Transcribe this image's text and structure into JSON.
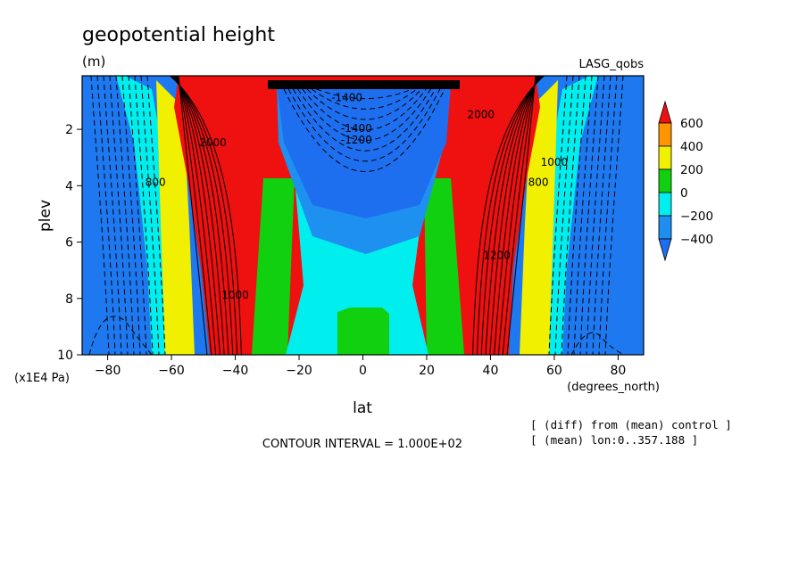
{
  "chart_data": {
    "type": "heatmap",
    "title": "geopotential height",
    "units": "(m)",
    "dataset_label": "LASG_qobs",
    "xlabel": "lat",
    "xunits": "(degrees_north)",
    "ylabel": "plev",
    "yunits": "(x1E4 Pa)",
    "x_ticks": [
      -80,
      -60,
      -40,
      -20,
      0,
      20,
      40,
      60,
      80
    ],
    "y_ticks": [
      2,
      4,
      6,
      8,
      10
    ],
    "xlim": [
      -88,
      88
    ],
    "ylim": [
      0.1,
      10
    ],
    "y_reversed": true,
    "contour_interval_text": "CONTOUR INTERVAL = 1.000E+02",
    "notes": [
      "[ (diff) from (mean) control ]",
      "[ (mean) lon:0..357.188 ]"
    ],
    "colorbar": {
      "levels": [
        600,
        400,
        200,
        0,
        -200,
        -400
      ],
      "bands": [
        {
          "range": "> 600",
          "color": "#ef1010"
        },
        {
          "range": "400 to 600",
          "color": "#ff9500"
        },
        {
          "range": "200 to 400",
          "color": "#f0f000"
        },
        {
          "range": "0 to 200",
          "color": "#10d010"
        },
        {
          "range": "-200 to 0",
          "color": "#00eeee"
        },
        {
          "range": "-400 to -200",
          "color": "#1e8ef0"
        },
        {
          "range": "< -400",
          "color": "#1e6ef0"
        }
      ]
    },
    "contour_labels": [
      {
        "text": "-1400",
        "x": -5,
        "y": 1.0
      },
      {
        "text": "-1400",
        "x": -2,
        "y": 2.1
      },
      {
        "text": "-1200",
        "x": -2,
        "y": 2.5
      },
      {
        "text": "1000",
        "x": -40,
        "y": 8.0
      },
      {
        "text": "1000",
        "x": 60,
        "y": 3.3
      },
      {
        "text": "1200",
        "x": 42,
        "y": 6.6
      },
      {
        "text": "800",
        "x": -65,
        "y": 4.0
      },
      {
        "text": "800",
        "x": 55,
        "y": 4.0
      },
      {
        "text": "2000",
        "x": -47,
        "y": 2.6
      },
      {
        "text": "2000",
        "x": 37,
        "y": 1.6
      }
    ]
  }
}
